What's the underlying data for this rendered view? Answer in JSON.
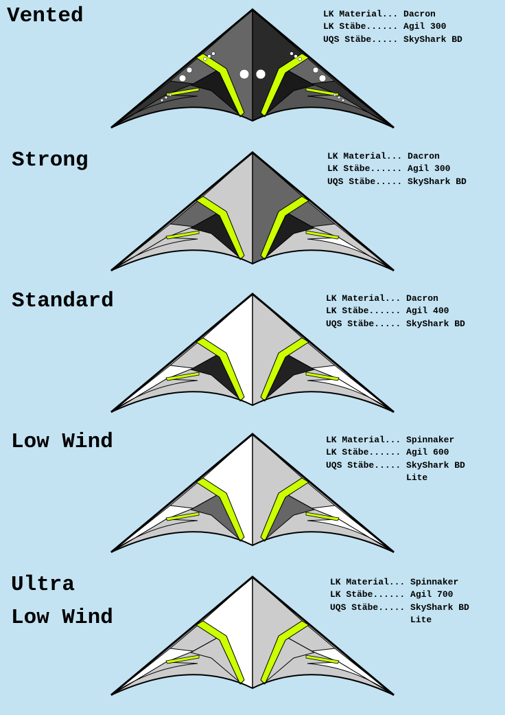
{
  "colors": {
    "background": "#c3e3f2",
    "outline": "#000000",
    "accent": "#ccff00"
  },
  "variants": [
    {
      "title_lines": [
        "Vented"
      ],
      "specs": [
        {
          "label": "LK Material...",
          "value": "Dacron"
        },
        {
          "label": "LK Stäbe......",
          "value": "Agil 300"
        },
        {
          "label": "UQS Stäbe.....",
          "value": "SkyShark BD"
        }
      ],
      "colors": {
        "tip": "#333333",
        "upper": "#666666",
        "center_left": "#666666",
        "center_right": "#2a2a2a",
        "lower": "#1a1a1a",
        "trailing": "#555555"
      },
      "vents": true
    },
    {
      "title_lines": [
        "Strong"
      ],
      "specs": [
        {
          "label": "LK Material...",
          "value": "Dacron"
        },
        {
          "label": "LK Stäbe......",
          "value": "Agil 300"
        },
        {
          "label": "UQS Stäbe.....",
          "value": "SkyShark BD"
        }
      ],
      "colors": {
        "tip": "#cccccc",
        "upper": "#666666",
        "center_left": "#cccccc",
        "center_right": "#666666",
        "lower": "#1e1e1e",
        "trailing": "#cccccc"
      },
      "vents": false
    },
    {
      "title_lines": [
        "Standard"
      ],
      "specs": [
        {
          "label": "LK Material...",
          "value": "Dacron"
        },
        {
          "label": "LK Stäbe......",
          "value": "Agil 400"
        },
        {
          "label": "UQS Stäbe.....",
          "value": "SkyShark BD"
        }
      ],
      "colors": {
        "tip": "#ffffff",
        "upper": "#cccccc",
        "center_left": "#ffffff",
        "center_right": "#cccccc",
        "lower": "#222222",
        "trailing": "#cccccc"
      },
      "vents": false
    },
    {
      "title_lines": [
        "Low Wind"
      ],
      "specs": [
        {
          "label": "LK Material...",
          "value": "Spinnaker"
        },
        {
          "label": "LK Stäbe......",
          "value": "Agil 600"
        },
        {
          "label": "UQS Stäbe.....",
          "value": "SkyShark BD"
        },
        {
          "label": "",
          "value": "Lite"
        }
      ],
      "colors": {
        "tip": "#ffffff",
        "upper": "#cccccc",
        "center_left": "#ffffff",
        "center_right": "#cccccc",
        "lower": "#666666",
        "trailing": "#cccccc"
      },
      "vents": false
    },
    {
      "title_lines": [
        "Ultra",
        "Low Wind"
      ],
      "specs": [
        {
          "label": "LK Material...",
          "value": "Spinnaker"
        },
        {
          "label": "LK Stäbe......",
          "value": "Agil 700"
        },
        {
          "label": "UQS Stäbe.....",
          "value": "SkyShark BD"
        },
        {
          "label": "",
          "value": "Lite"
        }
      ],
      "colors": {
        "tip": "#ffffff",
        "upper": "#cccccc",
        "center_left": "#ffffff",
        "center_right": "#cccccc",
        "lower": "#cccccc",
        "trailing": "#cccccc"
      },
      "vents": false
    }
  ]
}
